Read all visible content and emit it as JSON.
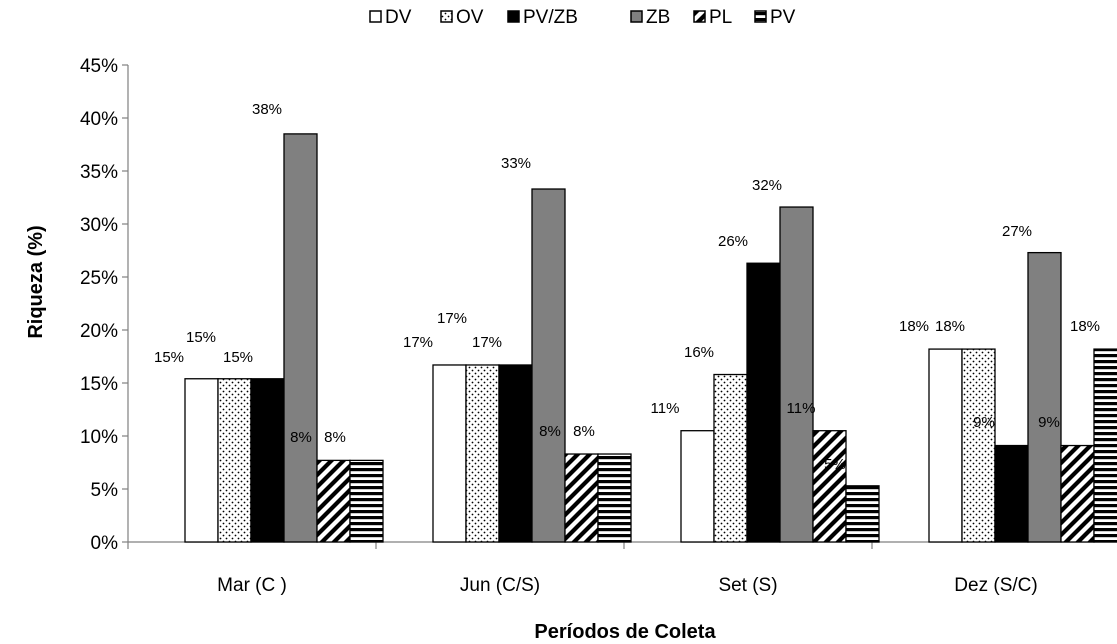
{
  "chart_data": {
    "type": "bar",
    "title": "",
    "xlabel": "Períodos de Coleta",
    "ylabel": "Riqueza (%)",
    "ylim": [
      0,
      45
    ],
    "y_ticks": [
      "0%",
      "5%",
      "10%",
      "15%",
      "20%",
      "25%",
      "30%",
      "35%",
      "40%",
      "45%"
    ],
    "categories": [
      "Mar (C )",
      "Jun (C/S)",
      "Set (S)",
      "Dez (S/C)"
    ],
    "legend_position": "top",
    "grid": false,
    "series": [
      {
        "name": "DV",
        "values": [
          15.4,
          16.7,
          10.5,
          18.2
        ],
        "labels": [
          "15%",
          "17%",
          "11%",
          "18%"
        ],
        "fill": "white"
      },
      {
        "name": "OV",
        "values": [
          15.4,
          16.7,
          15.8,
          18.2
        ],
        "labels": [
          "15%",
          "17%",
          "16%",
          "18%"
        ],
        "fill": "dotted"
      },
      {
        "name": "PV/ZB",
        "values": [
          15.4,
          16.7,
          26.3,
          9.1
        ],
        "labels": [
          "15%",
          "17%",
          "26%",
          "9%"
        ],
        "fill": "black"
      },
      {
        "name": "ZB",
        "values": [
          38.5,
          33.3,
          31.6,
          27.3
        ],
        "labels": [
          "38%",
          "33%",
          "32%",
          "27%"
        ],
        "fill": "gray"
      },
      {
        "name": "PL",
        "values": [
          7.7,
          8.3,
          10.5,
          9.1
        ],
        "labels": [
          "8%",
          "8%",
          "11%",
          "9%"
        ],
        "fill": "diagonal"
      },
      {
        "name": "PV",
        "values": [
          7.7,
          8.3,
          5.3,
          18.2
        ],
        "labels": [
          "8%",
          "8%",
          "5%",
          "18%"
        ],
        "fill": "horizontal"
      }
    ],
    "colors": {
      "gray": "#808080",
      "black": "#000000",
      "white": "#ffffff"
    }
  }
}
